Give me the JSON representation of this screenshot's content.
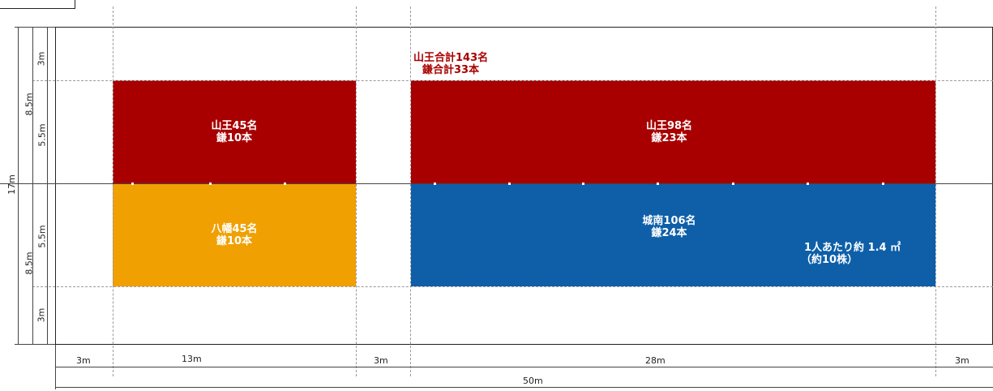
{
  "zones": {
    "sanno_left": {
      "line1": "山王45名",
      "line2": "鎌10本",
      "color": "#a80000"
    },
    "sanno_right": {
      "line1": "山王98名",
      "line2": "鎌23本",
      "color": "#a80000"
    },
    "hachiman": {
      "line1": "八幡45名",
      "line2": "鎌10本",
      "color": "#f0a000"
    },
    "jonan": {
      "line1": "城南106名",
      "line2": "鎌24本",
      "color": "#0e5fa8"
    }
  },
  "totals": {
    "line1": "山王合計143名",
    "line2": "鎌合計33本"
  },
  "note": {
    "line1": "1人あたり約 1.4 ㎡",
    "line2": "（約10株）"
  },
  "dims": {
    "bottom": [
      "3m",
      "13m",
      "3m",
      "28m",
      "3m"
    ],
    "overall_width": "50m",
    "left_inner": [
      "3m",
      "5.5m",
      "5.5m",
      "3m"
    ],
    "left_mid": [
      "8.5m",
      "8.5m"
    ],
    "overall_height": "17m"
  }
}
